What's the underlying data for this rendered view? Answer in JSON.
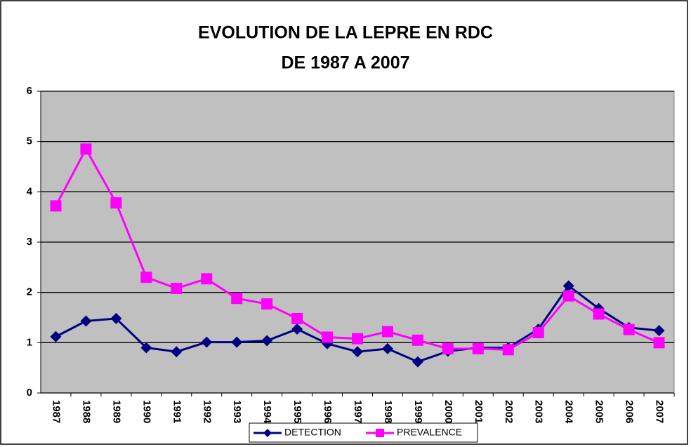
{
  "chart_data": {
    "type": "line",
    "title": [
      "EVOLUTION DE LA LEPRE EN RDC",
      "DE 1987 A 2007"
    ],
    "categories": [
      "1987",
      "1988",
      "1989",
      "1990",
      "1991",
      "1992",
      "1993",
      "1994",
      "1995",
      "1996",
      "1997",
      "1998",
      "1999",
      "2000",
      "2001",
      "2002",
      "2003",
      "2004",
      "2005",
      "2006",
      "2007"
    ],
    "series": [
      {
        "name": "DETECTION",
        "color": "#000080",
        "marker": "diamond",
        "values": [
          1.12,
          1.43,
          1.48,
          0.9,
          0.82,
          1.01,
          1.01,
          1.04,
          1.27,
          0.98,
          0.82,
          0.88,
          0.62,
          0.83,
          0.9,
          0.9,
          1.27,
          2.13,
          1.68,
          1.3,
          1.24
        ]
      },
      {
        "name": "PREVALENCE",
        "color": "#ff00ff",
        "marker": "square",
        "values": [
          3.72,
          4.85,
          3.78,
          2.3,
          2.08,
          2.27,
          1.88,
          1.77,
          1.48,
          1.11,
          1.08,
          1.22,
          1.05,
          0.88,
          0.88,
          0.86,
          1.2,
          1.93,
          1.57,
          1.26,
          1.0
        ]
      }
    ],
    "ylim": [
      0,
      6
    ],
    "yticks": [
      0,
      1,
      2,
      3,
      4,
      5,
      6
    ],
    "grid": true,
    "legend": "bottom"
  }
}
